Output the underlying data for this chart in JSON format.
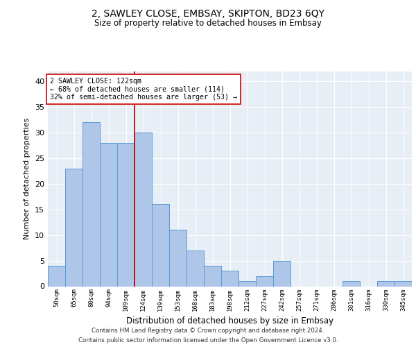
{
  "title": "2, SAWLEY CLOSE, EMBSAY, SKIPTON, BD23 6QY",
  "subtitle": "Size of property relative to detached houses in Embsay",
  "xlabel": "Distribution of detached houses by size in Embsay",
  "ylabel": "Number of detached properties",
  "categories": [
    "50sqm",
    "65sqm",
    "80sqm",
    "94sqm",
    "109sqm",
    "124sqm",
    "139sqm",
    "153sqm",
    "168sqm",
    "183sqm",
    "198sqm",
    "212sqm",
    "227sqm",
    "242sqm",
    "257sqm",
    "271sqm",
    "286sqm",
    "301sqm",
    "316sqm",
    "330sqm",
    "345sqm"
  ],
  "values": [
    4,
    23,
    32,
    28,
    28,
    30,
    16,
    11,
    7,
    4,
    3,
    1,
    2,
    5,
    0,
    0,
    0,
    1,
    0,
    1,
    1
  ],
  "bar_color": "#aec6e8",
  "bar_edge_color": "#5b9bd5",
  "property_label": "2 SAWLEY CLOSE: 122sqm",
  "annotation_line1": "← 68% of detached houses are smaller (114)",
  "annotation_line2": "32% of semi-detached houses are larger (53) →",
  "vline_color": "#cc0000",
  "annotation_box_color": "#ffffff",
  "ylim": [
    0,
    42
  ],
  "yticks": [
    0,
    5,
    10,
    15,
    20,
    25,
    30,
    35,
    40
  ],
  "background_color": "#e8eef5",
  "grid_color": "#ffffff",
  "footer1": "Contains HM Land Registry data © Crown copyright and database right 2024.",
  "footer2": "Contains public sector information licensed under the Open Government Licence v3.0."
}
